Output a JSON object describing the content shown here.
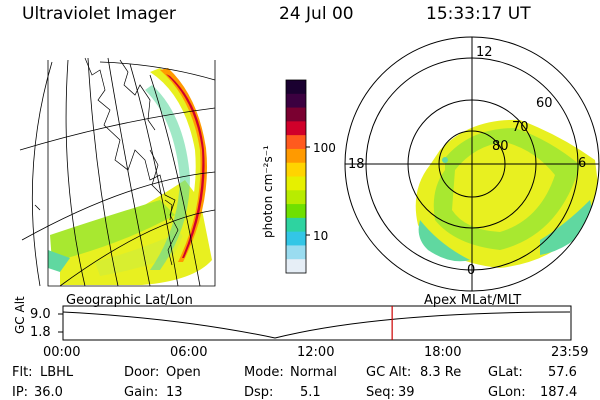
{
  "header": {
    "title": "Ultraviolet Imager",
    "date": "24 Jul 00",
    "time": "15:33:17 UT"
  },
  "colorbar": {
    "unit_label": "photon cm⁻²s⁻¹",
    "tick_100": "100",
    "tick_10": "10",
    "colors": [
      "#1a0030",
      "#3b0040",
      "#7a0030",
      "#d0002a",
      "#ff5a1e",
      "#ff9a00",
      "#ffd400",
      "#e6f000",
      "#b8ec00",
      "#6fe000",
      "#2ed3a0",
      "#33c6e6",
      "#9adcf0",
      "#e6eef6"
    ]
  },
  "geo_panel": {
    "label": "Geographic Lat/Lon",
    "fill_colors": [
      "#e8f020",
      "#a8e830",
      "#60d8a0",
      "#48c8f0",
      "#ff9a00",
      "#d0002a"
    ]
  },
  "polar_panel": {
    "label": "Apex MLat/MLT",
    "mlt_12": "12",
    "mlt_18": "18",
    "mlt_6": "6",
    "mlt_0": "0",
    "lat_60": "60",
    "lat_70": "70",
    "lat_80": "80"
  },
  "altitude_plot": {
    "ylabel": "GC Alt",
    "y_top": "9.0",
    "y_bottom": "1.8",
    "x_ticks": [
      "00:00",
      "06:00",
      "12:00",
      "18:00",
      "23:59"
    ],
    "current_time_marker_hours": 15.55,
    "marker_color": "#cc0000"
  },
  "status": {
    "flt_label": "Flt:",
    "flt_value": "LBHL",
    "ip_label": "IP:",
    "ip_value": "36.0",
    "door_label": "Door:",
    "door_value": "Open",
    "gain_label": "Gain:",
    "gain_value": "13",
    "mode_label": "Mode:",
    "mode_value": "Normal",
    "dsp_label": "Dsp:",
    "dsp_value": "5.1",
    "gcalt_label": "GC Alt:",
    "gcalt_value": "8.3 Re",
    "seq_label": "Seq:",
    "seq_value": "39",
    "glat_label": "GLat:",
    "glat_value": "57.6",
    "glon_label": "GLon:",
    "glon_value": "187.4"
  }
}
